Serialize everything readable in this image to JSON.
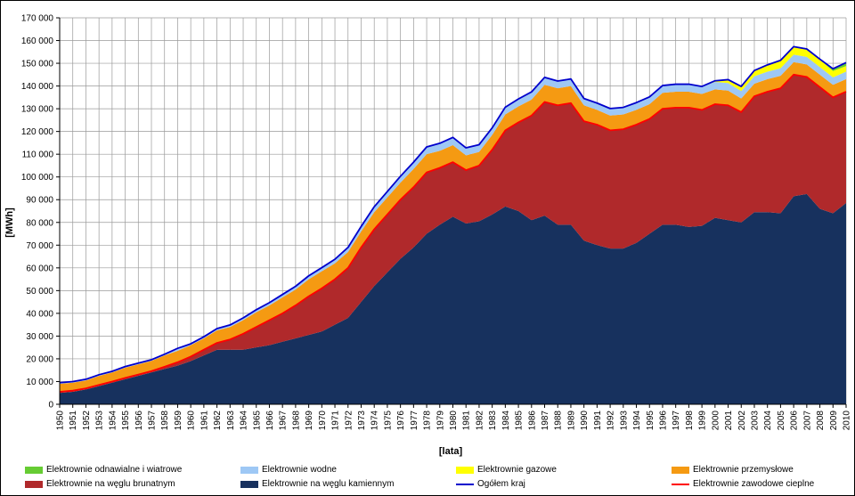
{
  "chart_data": {
    "type": "area",
    "xlabel": "[lata]",
    "ylabel": "[MWh]",
    "ylim": [
      0,
      170000
    ],
    "ytick_step": 10000,
    "grid": true,
    "legend_position": "bottom",
    "x": [
      1950,
      1951,
      1952,
      1953,
      1954,
      1955,
      1956,
      1957,
      1958,
      1959,
      1960,
      1961,
      1962,
      1963,
      1964,
      1965,
      1966,
      1967,
      1968,
      1969,
      1970,
      1971,
      1972,
      1973,
      1974,
      1975,
      1976,
      1977,
      1978,
      1979,
      1980,
      1981,
      1982,
      1983,
      1984,
      1985,
      1986,
      1987,
      1988,
      1989,
      1990,
      1991,
      1992,
      1993,
      1994,
      1995,
      1996,
      1997,
      1998,
      1999,
      2000,
      2001,
      2002,
      2003,
      2004,
      2005,
      2006,
      2007,
      2008,
      2009,
      2010
    ],
    "ytick_labels": [
      "0",
      "10 000",
      "20 000",
      "30 000",
      "40 000",
      "50 000",
      "60 000",
      "70 000",
      "80 000",
      "90 000",
      "100 000",
      "110 000",
      "120 000",
      "130 000",
      "140 000",
      "150 000",
      "160 000",
      "170 000"
    ],
    "series": [
      {
        "name": "Elektrownie na węglu kamiennym",
        "color": "#17315e",
        "kind": "area",
        "values": [
          5000,
          5500,
          6500,
          8000,
          9500,
          11000,
          12500,
          14000,
          15500,
          17000,
          19000,
          21500,
          24000,
          24000,
          24000,
          25000,
          26000,
          27500,
          29000,
          30500,
          32000,
          35000,
          38000,
          45000,
          52000,
          58000,
          64000,
          69000,
          75000,
          79000,
          82500,
          79500,
          80500,
          83500,
          87000,
          85000,
          81000,
          83000,
          79000,
          79000,
          72000,
          70000,
          68500,
          68500,
          71000,
          75000,
          79000,
          79000,
          78000,
          78500,
          82000,
          81000,
          80000,
          84500,
          84500,
          84000,
          91500,
          92500,
          86000,
          84000,
          88500
        ]
      },
      {
        "name": "Elektrownie na węglu brunatnym",
        "color": "#b0292b",
        "kind": "area",
        "values": [
          500,
          500,
          500,
          500,
          500,
          600,
          600,
          600,
          1000,
          1500,
          2000,
          2500,
          3000,
          4500,
          7000,
          9000,
          11000,
          12500,
          14500,
          17000,
          19000,
          20000,
          22000,
          24000,
          25000,
          25500,
          26000,
          26500,
          27000,
          25000,
          24000,
          23500,
          24500,
          28500,
          33500,
          39000,
          46000,
          50000,
          52500,
          53500,
          52500,
          53000,
          52000,
          52500,
          52000,
          50500,
          51000,
          51500,
          52500,
          51000,
          50000,
          50500,
          48500,
          51000,
          53000,
          55000,
          53500,
          51500,
          53500,
          51000,
          49000
        ]
      },
      {
        "name": "Elektrownie przemysłowe",
        "color": "#f59a12",
        "kind": "area",
        "values": [
          3500,
          3500,
          3500,
          4000,
          4000,
          4500,
          4500,
          4500,
          5000,
          5000,
          5000,
          5000,
          5500,
          5500,
          6000,
          6500,
          6500,
          7000,
          7000,
          7500,
          7500,
          7000,
          7000,
          7000,
          7500,
          7500,
          7500,
          8000,
          8000,
          7500,
          7500,
          6500,
          6000,
          6500,
          7000,
          7000,
          7000,
          7500,
          7500,
          7500,
          7000,
          6500,
          6500,
          6500,
          6500,
          6500,
          7000,
          7000,
          7000,
          7000,
          6500,
          6500,
          6000,
          5500,
          5500,
          5500,
          5500,
          5500,
          5500,
          5500,
          5500
        ]
      },
      {
        "name": "Elektrownie wodne",
        "color": "#9ec8f5",
        "kind": "area",
        "values": [
          500,
          500,
          500,
          500,
          500,
          500,
          500,
          500,
          500,
          600,
          600,
          700,
          800,
          900,
          1000,
          1100,
          1200,
          1300,
          1400,
          1500,
          1600,
          1800,
          2000,
          2200,
          2400,
          2600,
          2800,
          3000,
          3200,
          3300,
          3400,
          3300,
          3200,
          3100,
          3200,
          3300,
          3400,
          3300,
          3200,
          3100,
          3000,
          3000,
          3100,
          3100,
          3200,
          3200,
          3200,
          3300,
          3300,
          3300,
          3300,
          3300,
          3300,
          3300,
          3300,
          3300,
          3300,
          3300,
          3300,
          3300,
          3300
        ]
      },
      {
        "name": "Elektrownie gazowe",
        "color": "#ffff00",
        "kind": "area",
        "values": [
          0,
          0,
          0,
          0,
          0,
          0,
          0,
          0,
          0,
          0,
          0,
          0,
          0,
          0,
          0,
          0,
          0,
          0,
          0,
          0,
          0,
          0,
          0,
          0,
          0,
          0,
          0,
          0,
          0,
          0,
          0,
          0,
          0,
          0,
          0,
          0,
          0,
          0,
          0,
          0,
          0,
          0,
          0,
          0,
          0,
          0,
          0,
          0,
          0,
          0,
          500,
          1500,
          2000,
          2500,
          3000,
          3500,
          3500,
          3500,
          3300,
          2800,
          2500
        ]
      },
      {
        "name": "Elektrownie odnawialne i wiatrowe",
        "color": "#66cc33",
        "kind": "area",
        "values": [
          0,
          0,
          0,
          0,
          0,
          0,
          0,
          0,
          0,
          0,
          0,
          0,
          0,
          0,
          0,
          0,
          0,
          0,
          0,
          0,
          0,
          0,
          0,
          0,
          0,
          0,
          0,
          0,
          0,
          0,
          0,
          0,
          0,
          0,
          0,
          0,
          0,
          0,
          0,
          0,
          0,
          0,
          0,
          0,
          0,
          0,
          0,
          0,
          0,
          0,
          0,
          0,
          0,
          0,
          0,
          100,
          200,
          300,
          400,
          800,
          1500
        ]
      },
      {
        "name": "Elektrownie zawodowe cieplne",
        "color": "#ff0000",
        "kind": "line",
        "values": [
          5500,
          6000,
          7000,
          8500,
          10000,
          11600,
          13100,
          14600,
          16500,
          18500,
          21000,
          24000,
          27000,
          28500,
          31000,
          34000,
          37000,
          40000,
          43500,
          47500,
          51000,
          55000,
          60000,
          69000,
          77000,
          83500,
          90000,
          95500,
          102000,
          104000,
          106500,
          103000,
          105000,
          112000,
          120500,
          124000,
          127000,
          133000,
          131500,
          132500,
          124500,
          123000,
          120500,
          121000,
          123000,
          125500,
          130000,
          130500,
          130500,
          129500,
          132000,
          131500,
          128500,
          135500,
          137500,
          139000,
          145000,
          144000,
          139500,
          135000,
          137500
        ]
      },
      {
        "name": "Ogółem kraj",
        "color": "#0000cc",
        "kind": "line",
        "values": [
          9500,
          10000,
          11000,
          13000,
          14500,
          16600,
          18100,
          19600,
          22000,
          24600,
          26600,
          29700,
          33300,
          34900,
          38000,
          41600,
          44700,
          48300,
          51900,
          56500,
          60100,
          63800,
          69000,
          78200,
          86900,
          93600,
          100300,
          106500,
          113200,
          114800,
          117400,
          112800,
          114200,
          121600,
          130700,
          134300,
          137400,
          143800,
          142200,
          143100,
          134500,
          132500,
          130100,
          130600,
          132700,
          135200,
          140200,
          140800,
          140800,
          139800,
          142300,
          142800,
          139800,
          146800,
          149300,
          151300,
          157300,
          156300,
          151800,
          147600,
          150300
        ]
      }
    ],
    "legend": [
      {
        "label": "Elektrownie odnawialne i wiatrowe",
        "color": "#66cc33",
        "kind": "area"
      },
      {
        "label": "Elektrownie wodne",
        "color": "#9ec8f5",
        "kind": "area"
      },
      {
        "label": "Elektrownie gazowe",
        "color": "#ffff00",
        "kind": "area"
      },
      {
        "label": "Elektrownie przemysłowe",
        "color": "#f59a12",
        "kind": "area"
      },
      {
        "label": "Elektrownie na węglu brunatnym",
        "color": "#b0292b",
        "kind": "area"
      },
      {
        "label": "Elektrownie na węglu kamiennym",
        "color": "#17315e",
        "kind": "area"
      },
      {
        "label": "Ogółem kraj",
        "color": "#0000cc",
        "kind": "line"
      },
      {
        "label": "Elektrownie zawodowe cieplne",
        "color": "#ff0000",
        "kind": "line"
      }
    ]
  }
}
